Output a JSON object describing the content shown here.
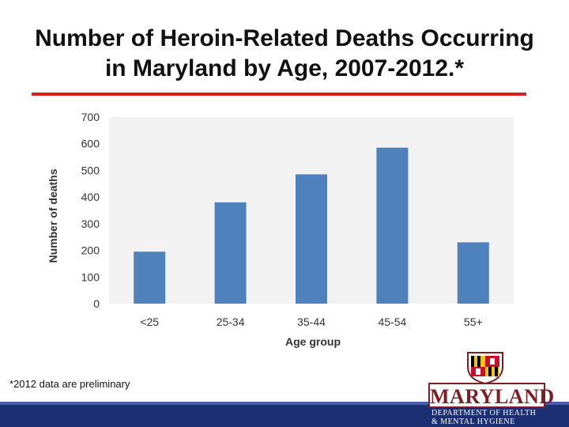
{
  "slide": {
    "title_line1": "Number of Heroin-Related Deaths Occurring",
    "title_line2": "in Maryland by Age, 2007-2012.*",
    "footnote": "*2012 data are preliminary",
    "accent_color": "#d91f26",
    "band_color": "#1d2f73"
  },
  "logo": {
    "word": "MARYLAND",
    "dept_line1": "DEPARTMENT OF HEALTH",
    "dept_line2": "& MENTAL HYGIENE",
    "icon": "maryland-crest-icon"
  },
  "chart_data": {
    "type": "bar",
    "categories": [
      "<25",
      "25-34",
      "35-44",
      "45-54",
      "55+"
    ],
    "values": [
      195,
      380,
      485,
      585,
      230
    ],
    "title": "",
    "xlabel": "Age group",
    "ylabel": "Number of deaths",
    "ylim": [
      0,
      700
    ],
    "yticks": [
      0,
      100,
      200,
      300,
      400,
      500,
      600,
      700
    ],
    "bar_color": "#4f81bd",
    "grid": false
  }
}
